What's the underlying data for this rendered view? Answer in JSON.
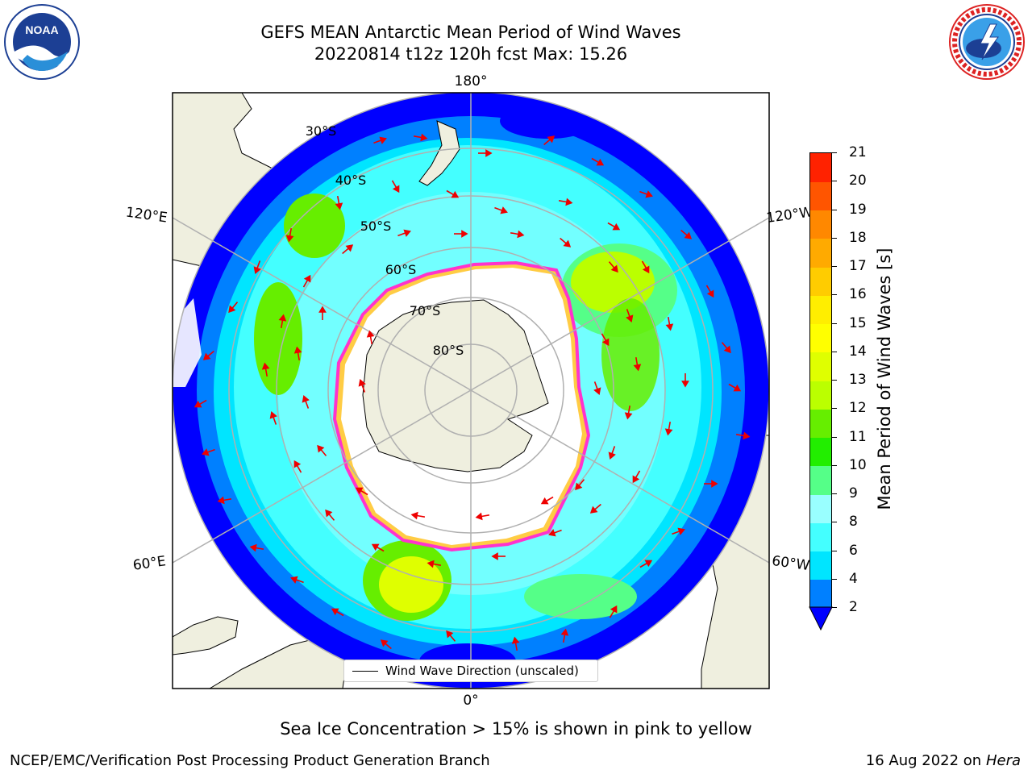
{
  "title": {
    "line1": "GEFS MEAN Antarctic Mean Period of Wind Waves",
    "line2": "20220814 t12z 120h fcst   Max: 15.26"
  },
  "map": {
    "projection": "south-polar-stereographic",
    "longitude_labels": {
      "top": "180°",
      "bottom": "0°",
      "left_upper": "120°E",
      "left_lower": "60°E",
      "right_upper": "120°W",
      "right_lower": "60°W"
    },
    "latitude_labels": [
      "30°S",
      "40°S",
      "50°S",
      "60°S",
      "70°S",
      "80°S"
    ],
    "colors": {
      "land": "#efefdf",
      "ice_edge": "#ff33cc",
      "ice_yellow": "#ffcc44",
      "arrows": "#ee0000",
      "grid": "#b0b0b0"
    }
  },
  "colorbar": {
    "label": "Mean Period of Wind Waves [s]",
    "ticks": [
      "2",
      "4",
      "6",
      "8",
      "9",
      "10",
      "11",
      "12",
      "13",
      "14",
      "15",
      "16",
      "17",
      "18",
      "19",
      "20",
      "21"
    ],
    "colors": [
      "#0080ff",
      "#00e5ff",
      "#44ffff",
      "#99ffff",
      "#55ff88",
      "#22ee00",
      "#66ee00",
      "#bbff00",
      "#dfff00",
      "#ffff00",
      "#ffee00",
      "#ffcc00",
      "#ffaa00",
      "#ff8800",
      "#ff5500",
      "#ff2200"
    ],
    "under_color": "#0000ff",
    "extend": "min"
  },
  "legend": {
    "entry": "Wind Wave Direction (unscaled)"
  },
  "note": "Sea Ice Concentration > 15% is shown in pink to yellow",
  "footer": {
    "left": "NCEP/EMC/Verification Post Processing Product Generation Branch",
    "right_date": "16 Aug 2022 on",
    "right_machine": "Hera"
  },
  "logos": {
    "left": "noaa-logo",
    "right": "national-weather-service-logo"
  }
}
